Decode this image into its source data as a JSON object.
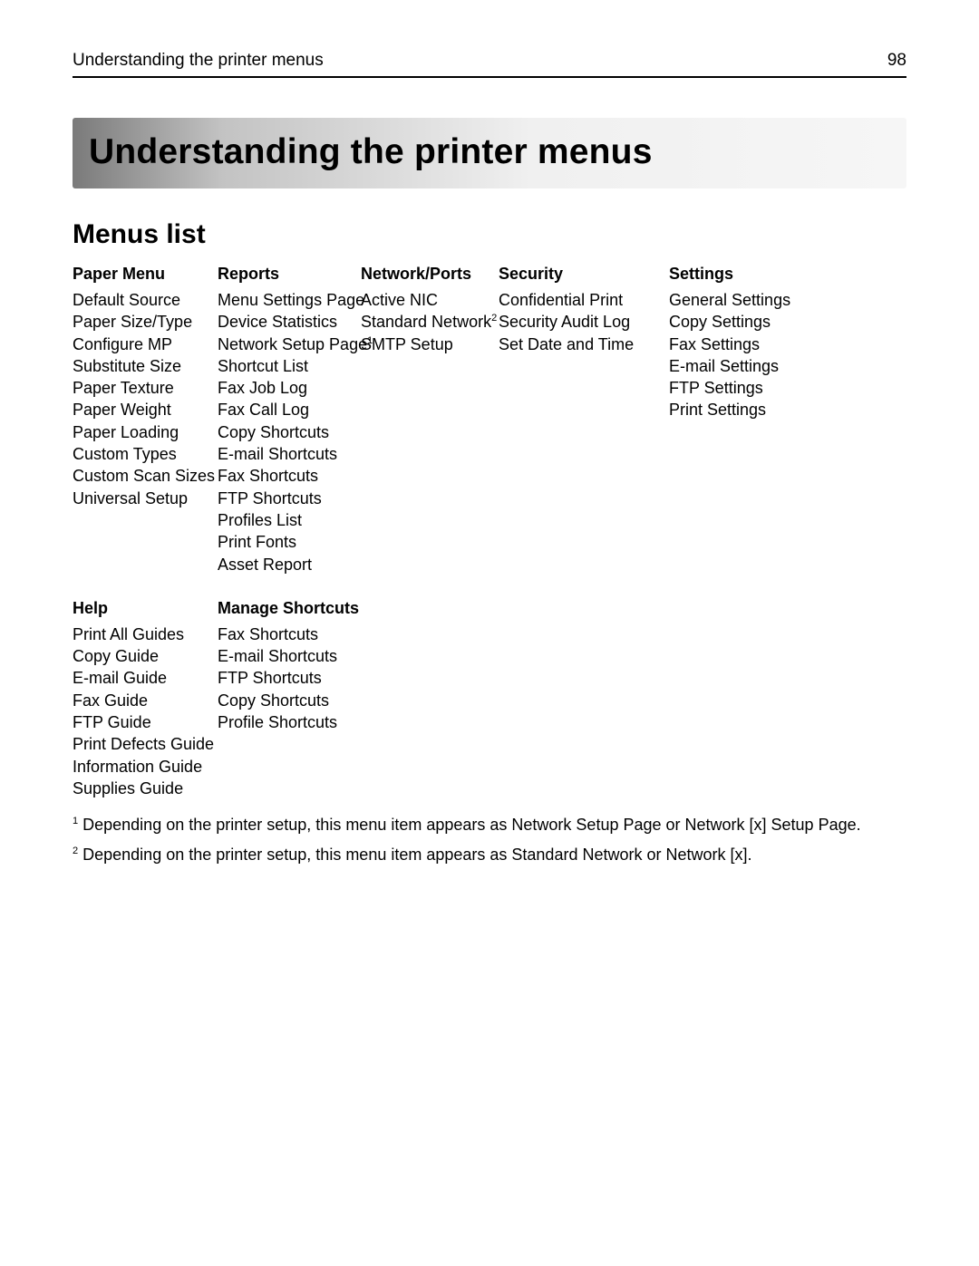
{
  "header": {
    "running_title": "Understanding the printer menus",
    "page_number": "98"
  },
  "chapter_title": "Understanding the printer menus",
  "section_title": "Menus list",
  "columns_row1": [
    {
      "width_class": "col-1",
      "head": "Paper Menu",
      "items": [
        {
          "text": "Default Source"
        },
        {
          "text": "Paper Size/Type"
        },
        {
          "text": "Configure MP"
        },
        {
          "text": "Substitute Size"
        },
        {
          "text": "Paper Texture"
        },
        {
          "text": "Paper Weight"
        },
        {
          "text": "Paper Loading"
        },
        {
          "text": "Custom Types"
        },
        {
          "text": "Custom Scan Sizes"
        },
        {
          "text": "Universal Setup"
        }
      ]
    },
    {
      "width_class": "col-2",
      "head": "Reports",
      "items": [
        {
          "text": "Menu Settings Page"
        },
        {
          "text": "Device Statistics"
        },
        {
          "text": "Network Setup Page",
          "sup": "1"
        },
        {
          "text": "Shortcut List"
        },
        {
          "text": "Fax Job Log"
        },
        {
          "text": "Fax Call Log"
        },
        {
          "text": "Copy Shortcuts"
        },
        {
          "text": "E-mail Shortcuts"
        },
        {
          "text": "Fax Shortcuts"
        },
        {
          "text": "FTP Shortcuts"
        },
        {
          "text": "Profiles List"
        },
        {
          "text": "Print Fonts"
        },
        {
          "text": "Asset Report"
        }
      ]
    },
    {
      "width_class": "col-3",
      "head": "Network/Ports",
      "items": [
        {
          "text": "Active NIC"
        },
        {
          "text": "Standard Network",
          "sup": "2"
        },
        {
          "text": "SMTP Setup"
        }
      ]
    },
    {
      "width_class": "col-4",
      "head": "Security",
      "items": [
        {
          "text": "Confidential Print"
        },
        {
          "text": "Security Audit Log"
        },
        {
          "text": "Set Date and Time"
        }
      ]
    },
    {
      "width_class": "col-5",
      "head": "Settings",
      "items": [
        {
          "text": "General Settings"
        },
        {
          "text": "Copy Settings"
        },
        {
          "text": "Fax Settings"
        },
        {
          "text": "E-mail Settings"
        },
        {
          "text": "FTP Settings"
        },
        {
          "text": "Print Settings"
        }
      ]
    }
  ],
  "columns_row2": [
    {
      "width_class": "col-1",
      "head": "Help",
      "items": [
        {
          "text": "Print All Guides"
        },
        {
          "text": "Copy Guide"
        },
        {
          "text": "E-mail Guide"
        },
        {
          "text": "Fax Guide"
        },
        {
          "text": "FTP Guide"
        },
        {
          "text": "Print Defects Guide"
        },
        {
          "text": "Information Guide"
        },
        {
          "text": "Supplies Guide"
        }
      ]
    },
    {
      "width_class": "col-2",
      "head": "Manage Shortcuts",
      "items": [
        {
          "text": "Fax Shortcuts"
        },
        {
          "text": "E-mail Shortcuts"
        },
        {
          "text": "FTP Shortcuts"
        },
        {
          "text": "Copy Shortcuts"
        },
        {
          "text": "Profile Shortcuts"
        }
      ]
    }
  ],
  "footnotes": [
    {
      "sup": "1",
      "text": " Depending on the printer setup, this menu item appears as Network Setup Page or Network [x] Setup Page."
    },
    {
      "sup": "2",
      "text": " Depending on the printer setup, this menu item appears as Standard Network or Network [x]."
    }
  ]
}
